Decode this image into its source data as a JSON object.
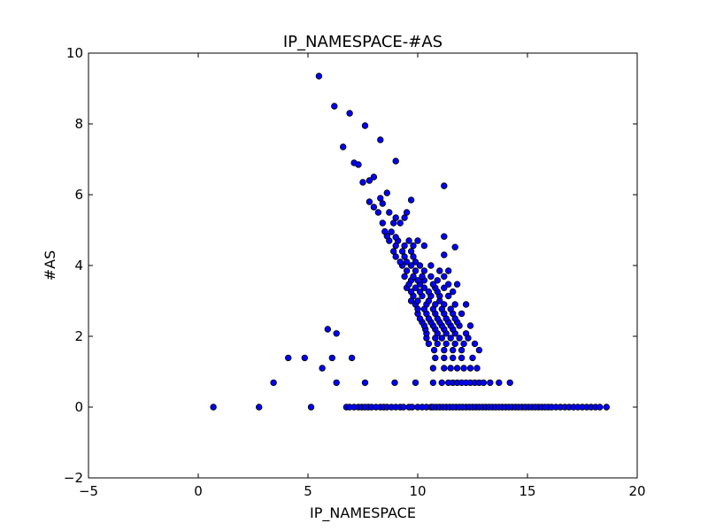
{
  "chart_data": {
    "type": "scatter",
    "title": "IP_NAMESPACE-#AS",
    "xlabel": "IP_NAMESPACE",
    "ylabel": "#AS",
    "xlim": [
      -5,
      20
    ],
    "ylim": [
      -2,
      10
    ],
    "xticks": [
      -5,
      0,
      5,
      10,
      15,
      20
    ],
    "yticks": [
      -2,
      0,
      2,
      4,
      6,
      8,
      10
    ],
    "xtick_labels": [
      "−5",
      "0",
      "5",
      "10",
      "15",
      "20"
    ],
    "ytick_labels": [
      "−2",
      "0",
      "2",
      "4",
      "6",
      "8",
      "10"
    ],
    "grid": false,
    "marker_color": "#0000ff",
    "marker_edge_color": "#000000",
    "points": [
      [
        0.69,
        0
      ],
      [
        2.77,
        0
      ],
      [
        5.14,
        0
      ],
      [
        6.75,
        0
      ],
      [
        6.9,
        0
      ],
      [
        7.1,
        0
      ],
      [
        7.3,
        0
      ],
      [
        7.45,
        0
      ],
      [
        7.6,
        0
      ],
      [
        7.75,
        0
      ],
      [
        7.9,
        0
      ],
      [
        8.1,
        0
      ],
      [
        8.3,
        0
      ],
      [
        8.45,
        0
      ],
      [
        8.6,
        0
      ],
      [
        8.8,
        0
      ],
      [
        9.0,
        0
      ],
      [
        9.2,
        0
      ],
      [
        9.35,
        0
      ],
      [
        9.6,
        0
      ],
      [
        9.75,
        0
      ],
      [
        10.0,
        0
      ],
      [
        10.2,
        0
      ],
      [
        10.4,
        0
      ],
      [
        10.6,
        0
      ],
      [
        10.7,
        0
      ],
      [
        10.85,
        0
      ],
      [
        11.0,
        0
      ],
      [
        11.15,
        0
      ],
      [
        11.3,
        0
      ],
      [
        11.45,
        0
      ],
      [
        11.6,
        0
      ],
      [
        11.75,
        0
      ],
      [
        11.9,
        0
      ],
      [
        12.05,
        0
      ],
      [
        12.2,
        0
      ],
      [
        12.35,
        0
      ],
      [
        12.5,
        0
      ],
      [
        12.65,
        0
      ],
      [
        12.8,
        0
      ],
      [
        12.95,
        0
      ],
      [
        13.1,
        0
      ],
      [
        13.25,
        0
      ],
      [
        13.4,
        0
      ],
      [
        13.55,
        0
      ],
      [
        13.7,
        0
      ],
      [
        13.85,
        0
      ],
      [
        14.0,
        0
      ],
      [
        14.15,
        0
      ],
      [
        14.3,
        0
      ],
      [
        14.45,
        0
      ],
      [
        14.6,
        0
      ],
      [
        14.75,
        0
      ],
      [
        14.9,
        0
      ],
      [
        15.05,
        0
      ],
      [
        15.2,
        0
      ],
      [
        15.35,
        0
      ],
      [
        15.5,
        0
      ],
      [
        15.65,
        0
      ],
      [
        15.8,
        0
      ],
      [
        15.95,
        0
      ],
      [
        16.1,
        0
      ],
      [
        16.3,
        0
      ],
      [
        16.5,
        0
      ],
      [
        16.7,
        0
      ],
      [
        16.9,
        0
      ],
      [
        17.1,
        0
      ],
      [
        17.3,
        0
      ],
      [
        17.5,
        0
      ],
      [
        17.7,
        0
      ],
      [
        17.9,
        0
      ],
      [
        18.1,
        0
      ],
      [
        18.3,
        0
      ],
      [
        18.6,
        0
      ],
      [
        3.43,
        0.69
      ],
      [
        6.3,
        0.69
      ],
      [
        7.6,
        0.69
      ],
      [
        8.95,
        0.69
      ],
      [
        9.9,
        0.69
      ],
      [
        10.7,
        0.69
      ],
      [
        11.1,
        0.69
      ],
      [
        11.4,
        0.69
      ],
      [
        11.6,
        0.69
      ],
      [
        11.8,
        0.69
      ],
      [
        12.0,
        0.69
      ],
      [
        12.2,
        0.69
      ],
      [
        12.4,
        0.69
      ],
      [
        12.6,
        0.69
      ],
      [
        12.8,
        0.69
      ],
      [
        13.0,
        0.69
      ],
      [
        13.3,
        0.69
      ],
      [
        13.7,
        0.69
      ],
      [
        14.2,
        0.69
      ],
      [
        5.65,
        1.1
      ],
      [
        10.7,
        1.1
      ],
      [
        11.2,
        1.1
      ],
      [
        11.5,
        1.1
      ],
      [
        11.8,
        1.1
      ],
      [
        12.1,
        1.1
      ],
      [
        12.4,
        1.1
      ],
      [
        12.7,
        1.1
      ],
      [
        4.1,
        1.39
      ],
      [
        4.85,
        1.39
      ],
      [
        6.1,
        1.39
      ],
      [
        7.0,
        1.39
      ],
      [
        10.8,
        1.39
      ],
      [
        11.2,
        1.39
      ],
      [
        11.6,
        1.39
      ],
      [
        12.0,
        1.39
      ],
      [
        12.5,
        1.39
      ],
      [
        10.75,
        1.61
      ],
      [
        11.2,
        1.61
      ],
      [
        11.6,
        1.61
      ],
      [
        12.0,
        1.61
      ],
      [
        12.8,
        1.61
      ],
      [
        10.5,
        1.79
      ],
      [
        10.9,
        1.79
      ],
      [
        11.3,
        1.79
      ],
      [
        11.7,
        1.79
      ],
      [
        12.1,
        1.79
      ],
      [
        12.6,
        1.79
      ],
      [
        10.4,
        1.95
      ],
      [
        10.8,
        1.95
      ],
      [
        11.1,
        1.95
      ],
      [
        11.5,
        1.95
      ],
      [
        11.9,
        1.95
      ],
      [
        12.3,
        1.95
      ],
      [
        6.3,
        2.08
      ],
      [
        10.4,
        2.08
      ],
      [
        10.9,
        2.08
      ],
      [
        11.3,
        2.08
      ],
      [
        11.7,
        2.08
      ],
      [
        12.2,
        2.08
      ],
      [
        5.9,
        2.2
      ],
      [
        10.35,
        2.2
      ],
      [
        10.8,
        2.2
      ],
      [
        11.2,
        2.2
      ],
      [
        11.6,
        2.2
      ],
      [
        10.3,
        2.3
      ],
      [
        10.7,
        2.3
      ],
      [
        11.1,
        2.3
      ],
      [
        11.5,
        2.3
      ],
      [
        11.9,
        2.3
      ],
      [
        12.4,
        2.3
      ],
      [
        10.2,
        2.4
      ],
      [
        10.6,
        2.4
      ],
      [
        11.0,
        2.4
      ],
      [
        11.4,
        2.4
      ],
      [
        11.8,
        2.4
      ],
      [
        10.1,
        2.5
      ],
      [
        10.5,
        2.5
      ],
      [
        10.9,
        2.5
      ],
      [
        11.3,
        2.5
      ],
      [
        11.7,
        2.5
      ],
      [
        10.0,
        2.64
      ],
      [
        10.4,
        2.64
      ],
      [
        10.8,
        2.64
      ],
      [
        11.2,
        2.64
      ],
      [
        11.6,
        2.64
      ],
      [
        12.0,
        2.64
      ],
      [
        10.0,
        2.77
      ],
      [
        10.3,
        2.77
      ],
      [
        10.7,
        2.77
      ],
      [
        11.1,
        2.77
      ],
      [
        11.5,
        2.77
      ],
      [
        9.9,
        2.9
      ],
      [
        10.4,
        2.9
      ],
      [
        10.8,
        2.9
      ],
      [
        11.2,
        2.9
      ],
      [
        11.7,
        2.9
      ],
      [
        12.2,
        2.9
      ],
      [
        9.7,
        3.0
      ],
      [
        10.0,
        3.0
      ],
      [
        10.5,
        3.0
      ],
      [
        11.0,
        3.0
      ],
      [
        9.8,
        3.14
      ],
      [
        10.2,
        3.14
      ],
      [
        10.6,
        3.14
      ],
      [
        11.0,
        3.14
      ],
      [
        11.4,
        3.14
      ],
      [
        9.7,
        3.26
      ],
      [
        10.1,
        3.26
      ],
      [
        10.5,
        3.26
      ],
      [
        10.9,
        3.26
      ],
      [
        11.6,
        3.26
      ],
      [
        9.5,
        3.37
      ],
      [
        9.9,
        3.37
      ],
      [
        10.3,
        3.37
      ],
      [
        10.8,
        3.37
      ],
      [
        11.2,
        3.37
      ],
      [
        9.6,
        3.47
      ],
      [
        10.1,
        3.47
      ],
      [
        10.7,
        3.47
      ],
      [
        11.4,
        3.47
      ],
      [
        11.8,
        3.47
      ],
      [
        9.7,
        3.58
      ],
      [
        10.0,
        3.58
      ],
      [
        10.3,
        3.58
      ],
      [
        10.9,
        3.58
      ],
      [
        9.4,
        3.69
      ],
      [
        9.8,
        3.69
      ],
      [
        10.2,
        3.69
      ],
      [
        10.6,
        3.69
      ],
      [
        11.2,
        3.69
      ],
      [
        9.5,
        3.85
      ],
      [
        9.9,
        3.85
      ],
      [
        10.3,
        3.85
      ],
      [
        11.0,
        3.85
      ],
      [
        11.4,
        3.85
      ],
      [
        9.3,
        4.0
      ],
      [
        9.7,
        4.0
      ],
      [
        10.1,
        4.0
      ],
      [
        10.6,
        4.0
      ],
      [
        9.2,
        4.1
      ],
      [
        9.5,
        4.1
      ],
      [
        9.9,
        4.1
      ],
      [
        9.0,
        4.25
      ],
      [
        9.4,
        4.25
      ],
      [
        9.8,
        4.25
      ],
      [
        11.2,
        4.3
      ],
      [
        8.9,
        4.4
      ],
      [
        9.3,
        4.4
      ],
      [
        9.7,
        4.4
      ],
      [
        9.0,
        4.56
      ],
      [
        9.4,
        4.56
      ],
      [
        9.8,
        4.56
      ],
      [
        10.3,
        4.56
      ],
      [
        11.7,
        4.52
      ],
      [
        8.7,
        4.7
      ],
      [
        9.1,
        4.7
      ],
      [
        9.6,
        4.7
      ],
      [
        10.0,
        4.7
      ],
      [
        8.6,
        4.83
      ],
      [
        9.0,
        4.8
      ],
      [
        11.2,
        4.82
      ],
      [
        8.5,
        4.96
      ],
      [
        8.8,
        4.95
      ],
      [
        8.4,
        5.2
      ],
      [
        8.9,
        5.2
      ],
      [
        9.2,
        5.2
      ],
      [
        9.0,
        5.35
      ],
      [
        9.4,
        5.35
      ],
      [
        8.2,
        5.5
      ],
      [
        8.7,
        5.5
      ],
      [
        9.5,
        5.5
      ],
      [
        8.0,
        5.65
      ],
      [
        8.4,
        5.75
      ],
      [
        9.7,
        5.85
      ],
      [
        7.8,
        5.8
      ],
      [
        8.3,
        5.9
      ],
      [
        8.6,
        6.05
      ],
      [
        7.5,
        6.35
      ],
      [
        7.8,
        6.4
      ],
      [
        8.0,
        6.5
      ],
      [
        11.2,
        6.25
      ],
      [
        7.1,
        6.9
      ],
      [
        7.3,
        6.85
      ],
      [
        9.0,
        6.95
      ],
      [
        6.6,
        7.35
      ],
      [
        8.3,
        7.55
      ],
      [
        7.6,
        7.95
      ],
      [
        6.9,
        8.3
      ],
      [
        6.2,
        8.5
      ],
      [
        5.5,
        9.35
      ]
    ]
  }
}
